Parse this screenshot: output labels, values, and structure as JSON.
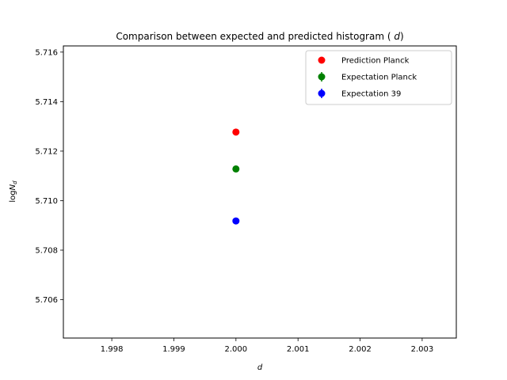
{
  "chart_data": {
    "type": "scatter",
    "title": "Comparison between expected and predicted histogram (d)",
    "xlabel": "d",
    "ylabel": "logN_d",
    "xlim": [
      1.99722,
      2.00355
    ],
    "ylim": [
      5.70445,
      5.71625
    ],
    "xticks": [
      "1.998",
      "1.999",
      "2.000",
      "2.001",
      "2.002",
      "2.003"
    ],
    "yticks": [
      "5.706",
      "5.708",
      "5.710",
      "5.712",
      "5.714",
      "5.716"
    ],
    "legend": "top-right",
    "series": [
      {
        "name": "Prediction Planck",
        "color": "#ff0000",
        "marker": "circle",
        "errorbar": false,
        "points": [
          {
            "x": 2.0,
            "y": 5.71277
          }
        ]
      },
      {
        "name": "Expectation Planck",
        "color": "#008000",
        "marker": "circle",
        "errorbar": true,
        "points": [
          {
            "x": 2.0,
            "y": 5.71128
          }
        ]
      },
      {
        "name": "Expectation 39",
        "color": "#0000ff",
        "marker": "circle",
        "errorbar": true,
        "points": [
          {
            "x": 2.0,
            "y": 5.70918
          }
        ]
      }
    ]
  }
}
